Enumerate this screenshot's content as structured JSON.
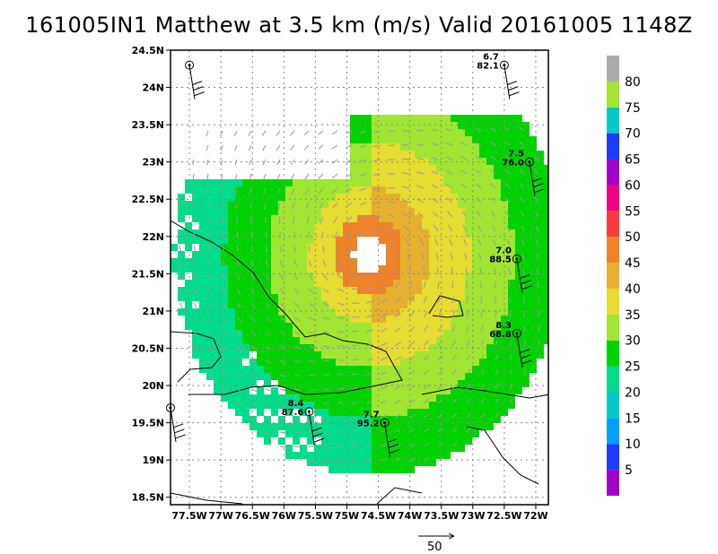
{
  "chart_data": {
    "type": "heatmap",
    "title": "161005IN1 Matthew at 3.5 km (m/s) Valid 20161005 1148Z",
    "xlabel": "",
    "ylabel": "",
    "x_ticks": [
      "77.5W",
      "77W",
      "76.5W",
      "76W",
      "75.5W",
      "75W",
      "74.5W",
      "74W",
      "73.5W",
      "73W",
      "72.5W",
      "72W"
    ],
    "x_tick_values": [
      -77.5,
      -77.0,
      -76.5,
      -76.0,
      -75.5,
      -75.0,
      -74.5,
      -74.0,
      -73.5,
      -73.0,
      -72.5,
      -72.0
    ],
    "y_ticks": [
      "24.5N",
      "24N",
      "23.5N",
      "23N",
      "22.5N",
      "22N",
      "21.5N",
      "21N",
      "20.5N",
      "20N",
      "19.5N",
      "19N",
      "18.5N"
    ],
    "y_tick_values": [
      24.5,
      24.0,
      23.5,
      23.0,
      22.5,
      22.0,
      21.5,
      21.0,
      20.5,
      20.0,
      19.5,
      19.0,
      18.5
    ],
    "xlim": [
      -77.8,
      -71.8
    ],
    "ylim": [
      18.4,
      24.5
    ],
    "grid": true,
    "colorbar": {
      "levels": [
        "5",
        "10",
        "15",
        "20",
        "25",
        "30",
        "35",
        "40",
        "45",
        "50",
        "55",
        "60",
        "65",
        "70",
        "75",
        "80"
      ],
      "colors": [
        "#a000c8",
        "#1e3cff",
        "#00a0ff",
        "#00c8c8",
        "#00dc8c",
        "#00d200",
        "#a0e632",
        "#e6dc32",
        "#e6af2d",
        "#f08228",
        "#fa3c3c",
        "#f00082",
        "#a000c8",
        "#1e3cff",
        "#00c8c8",
        "#a0e632",
        "#aaaaaa"
      ]
    },
    "vortex_center": {
      "lon": -74.65,
      "lat": 21.75
    },
    "wind_field": {
      "center_lon": -74.65,
      "center_lat": 21.75,
      "rings": [
        {
          "r_deg": 0.25,
          "value": 0
        },
        {
          "r_deg": 0.55,
          "value": 45
        },
        {
          "r_deg": 0.95,
          "value": 35
        },
        {
          "r_deg": 1.6,
          "value": 30
        },
        {
          "r_deg": 2.3,
          "value": 25
        },
        {
          "r_deg": 3.1,
          "value": 20
        }
      ],
      "reference_vector": "50"
    },
    "stations": [
      {
        "lon": -77.5,
        "lat": 24.3,
        "speed": "",
        "dir": ""
      },
      {
        "lon": -72.5,
        "lat": 24.3,
        "speed": "6.7",
        "dir": "82.1"
      },
      {
        "lon": -72.1,
        "lat": 23.0,
        "speed": "7.5",
        "dir": "76.0"
      },
      {
        "lon": -72.3,
        "lat": 21.7,
        "speed": "7.0",
        "dir": "88.5"
      },
      {
        "lon": -72.3,
        "lat": 20.7,
        "speed": "8.3",
        "dir": "68.8"
      },
      {
        "lon": -75.6,
        "lat": 19.65,
        "speed": "8.4",
        "dir": "87.6"
      },
      {
        "lon": -74.4,
        "lat": 19.5,
        "speed": "7.7",
        "dir": "95.2"
      },
      {
        "lon": -77.8,
        "lat": 19.7,
        "speed": "",
        "dir": ""
      }
    ]
  }
}
